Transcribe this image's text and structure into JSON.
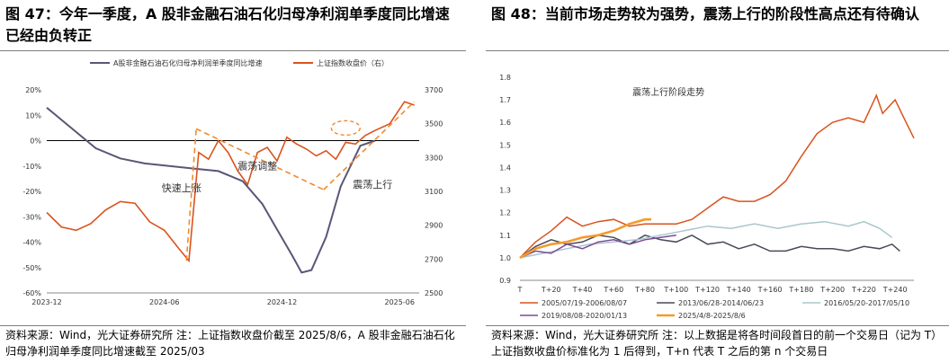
{
  "left": {
    "title": "图 47：今年一季度，A 股非金融石油石化归母净利润单季度同比增速已经由负转正",
    "source": "资料来源：Wind，光大证券研究所      注：上证指数收盘价截至 2025/8/6，A 股非金融石油石化归母净利润单季度同比增速截至 2025/03"
  },
  "right": {
    "title": "图 48：当前市场走势较为强势，震荡上行的阶段性高点还有待确认",
    "source": "资料来源：Wind，光大证券研究所      注：以上数据是将各时间段首日的前一个交易日（记为 T）上证指数收盘价标准化为 1 后得到，T+n 代表 T 之后的第 n 个交易日"
  },
  "chart_data": [
    {
      "type": "line",
      "title": "",
      "x_ticks": [
        "2023-12",
        "2024-06",
        "2024-12",
        "2025-06"
      ],
      "y_left": {
        "ticks": [
          "20%",
          "10%",
          "0%",
          "-10%",
          "-20%",
          "-30%",
          "-40%",
          "-50%",
          "-60%"
        ],
        "range": [
          -60,
          20
        ]
      },
      "y_right": {
        "ticks": [
          "3700",
          "3500",
          "3300",
          "3100",
          "2900",
          "2700",
          "2500"
        ],
        "range": [
          2500,
          3700
        ]
      },
      "legend_position": "top",
      "annotations": [
        "快速上涨",
        "震荡调整",
        "震荡上行"
      ],
      "series": [
        {
          "name": "A股非金融石油石化归母净利润单季度同比增速",
          "axis": "left",
          "color": "#5b5577",
          "points": [
            [
              0,
              13
            ],
            [
              5,
              5
            ],
            [
              10,
              -3
            ],
            [
              15,
              -7
            ],
            [
              20,
              -9
            ],
            [
              25,
              -10
            ],
            [
              30,
              -11
            ],
            [
              35,
              -12
            ],
            [
              40,
              -16
            ],
            [
              44,
              -25
            ],
            [
              47,
              -35
            ],
            [
              50,
              -45
            ],
            [
              52,
              -52
            ],
            [
              54,
              -51
            ],
            [
              57,
              -38
            ],
            [
              60,
              -18
            ],
            [
              64,
              -2
            ],
            [
              67,
              0
            ]
          ]
        },
        {
          "name": "上证指数收盘价（右）",
          "axis": "right",
          "color": "#d9531e",
          "points": [
            [
              0,
              2975
            ],
            [
              3,
              2890
            ],
            [
              6,
              2870
            ],
            [
              9,
              2910
            ],
            [
              12,
              2990
            ],
            [
              15,
              3040
            ],
            [
              18,
              3030
            ],
            [
              21,
              2920
            ],
            [
              24,
              2870
            ],
            [
              27,
              2760
            ],
            [
              29,
              2690
            ],
            [
              31,
              3330
            ],
            [
              33,
              3290
            ],
            [
              35,
              3400
            ],
            [
              37,
              3330
            ],
            [
              39,
              3220
            ],
            [
              41,
              3140
            ],
            [
              43,
              3330
            ],
            [
              45,
              3360
            ],
            [
              47,
              3280
            ],
            [
              49,
              3420
            ],
            [
              51,
              3380
            ],
            [
              53,
              3350
            ],
            [
              55,
              3310
            ],
            [
              57,
              3340
            ],
            [
              59,
              3290
            ],
            [
              61,
              3390
            ],
            [
              63,
              3380
            ],
            [
              65,
              3430
            ],
            [
              67,
              3460
            ],
            [
              70,
              3500
            ],
            [
              73,
              3630
            ],
            [
              75,
              3610
            ]
          ]
        }
      ]
    },
    {
      "type": "line",
      "title": "震荡上行阶段走势",
      "x_ticks": [
        "T",
        "T+20",
        "T+40",
        "T+60",
        "T+80",
        "T+100",
        "T+120",
        "T+140",
        "T+160",
        "T+180",
        "T+200",
        "T+220",
        "T+240"
      ],
      "y": {
        "ticks": [
          "1.8",
          "1.7",
          "1.6",
          "1.5",
          "1.4",
          "1.3",
          "1.2",
          "1.1",
          "1.0",
          "0.9"
        ],
        "range": [
          0.9,
          1.8
        ]
      },
      "legend_position": "bottom",
      "series": [
        {
          "name": "2005/07/19-2006/08/07",
          "color": "#d9531e",
          "points": [
            [
              0,
              1.0
            ],
            [
              10,
              1.07
            ],
            [
              20,
              1.12
            ],
            [
              30,
              1.18
            ],
            [
              40,
              1.14
            ],
            [
              50,
              1.16
            ],
            [
              60,
              1.17
            ],
            [
              70,
              1.14
            ],
            [
              80,
              1.15
            ],
            [
              90,
              1.15
            ],
            [
              100,
              1.15
            ],
            [
              110,
              1.17
            ],
            [
              120,
              1.22
            ],
            [
              130,
              1.27
            ],
            [
              140,
              1.25
            ],
            [
              150,
              1.25
            ],
            [
              160,
              1.28
            ],
            [
              170,
              1.34
            ],
            [
              180,
              1.45
            ],
            [
              190,
              1.55
            ],
            [
              200,
              1.6
            ],
            [
              210,
              1.62
            ],
            [
              220,
              1.6
            ],
            [
              228,
              1.72
            ],
            [
              232,
              1.64
            ],
            [
              240,
              1.7
            ],
            [
              247,
              1.6
            ],
            [
              252,
              1.53
            ]
          ]
        },
        {
          "name": "2013/06/28-2014/06/23",
          "color": "#4a4a5a",
          "points": [
            [
              0,
              1.0
            ],
            [
              10,
              1.05
            ],
            [
              20,
              1.08
            ],
            [
              30,
              1.06
            ],
            [
              40,
              1.07
            ],
            [
              50,
              1.1
            ],
            [
              60,
              1.09
            ],
            [
              70,
              1.06
            ],
            [
              80,
              1.1
            ],
            [
              90,
              1.08
            ],
            [
              100,
              1.07
            ],
            [
              110,
              1.1
            ],
            [
              120,
              1.06
            ],
            [
              130,
              1.07
            ],
            [
              140,
              1.04
            ],
            [
              150,
              1.06
            ],
            [
              160,
              1.03
            ],
            [
              170,
              1.03
            ],
            [
              180,
              1.05
            ],
            [
              190,
              1.04
            ],
            [
              200,
              1.04
            ],
            [
              210,
              1.03
            ],
            [
              220,
              1.05
            ],
            [
              230,
              1.04
            ],
            [
              238,
              1.06
            ],
            [
              243,
              1.03
            ]
          ]
        },
        {
          "name": "2016/05/20-2017/05/10",
          "color": "#a9c6cd",
          "points": [
            [
              0,
              1.0
            ],
            [
              15,
              1.02
            ],
            [
              30,
              1.04
            ],
            [
              45,
              1.06
            ],
            [
              60,
              1.07
            ],
            [
              75,
              1.08
            ],
            [
              90,
              1.1
            ],
            [
              105,
              1.12
            ],
            [
              120,
              1.14
            ],
            [
              135,
              1.13
            ],
            [
              150,
              1.15
            ],
            [
              165,
              1.13
            ],
            [
              180,
              1.15
            ],
            [
              195,
              1.16
            ],
            [
              210,
              1.14
            ],
            [
              220,
              1.16
            ],
            [
              230,
              1.13
            ],
            [
              238,
              1.09
            ]
          ]
        },
        {
          "name": "2019/08/08-2020/01/13",
          "color": "#7a4b97",
          "points": [
            [
              0,
              1.0
            ],
            [
              10,
              1.03
            ],
            [
              20,
              1.02
            ],
            [
              30,
              1.06
            ],
            [
              40,
              1.04
            ],
            [
              50,
              1.07
            ],
            [
              60,
              1.08
            ],
            [
              70,
              1.06
            ],
            [
              80,
              1.08
            ],
            [
              90,
              1.09
            ],
            [
              100,
              1.1
            ]
          ]
        },
        {
          "name": "2025/4/8-2025/8/6",
          "color": "#f39a2e",
          "points": [
            [
              0,
              1.0
            ],
            [
              10,
              1.04
            ],
            [
              20,
              1.06
            ],
            [
              30,
              1.07
            ],
            [
              40,
              1.09
            ],
            [
              50,
              1.1
            ],
            [
              60,
              1.12
            ],
            [
              70,
              1.15
            ],
            [
              80,
              1.17
            ],
            [
              84,
              1.17
            ]
          ]
        }
      ]
    }
  ]
}
